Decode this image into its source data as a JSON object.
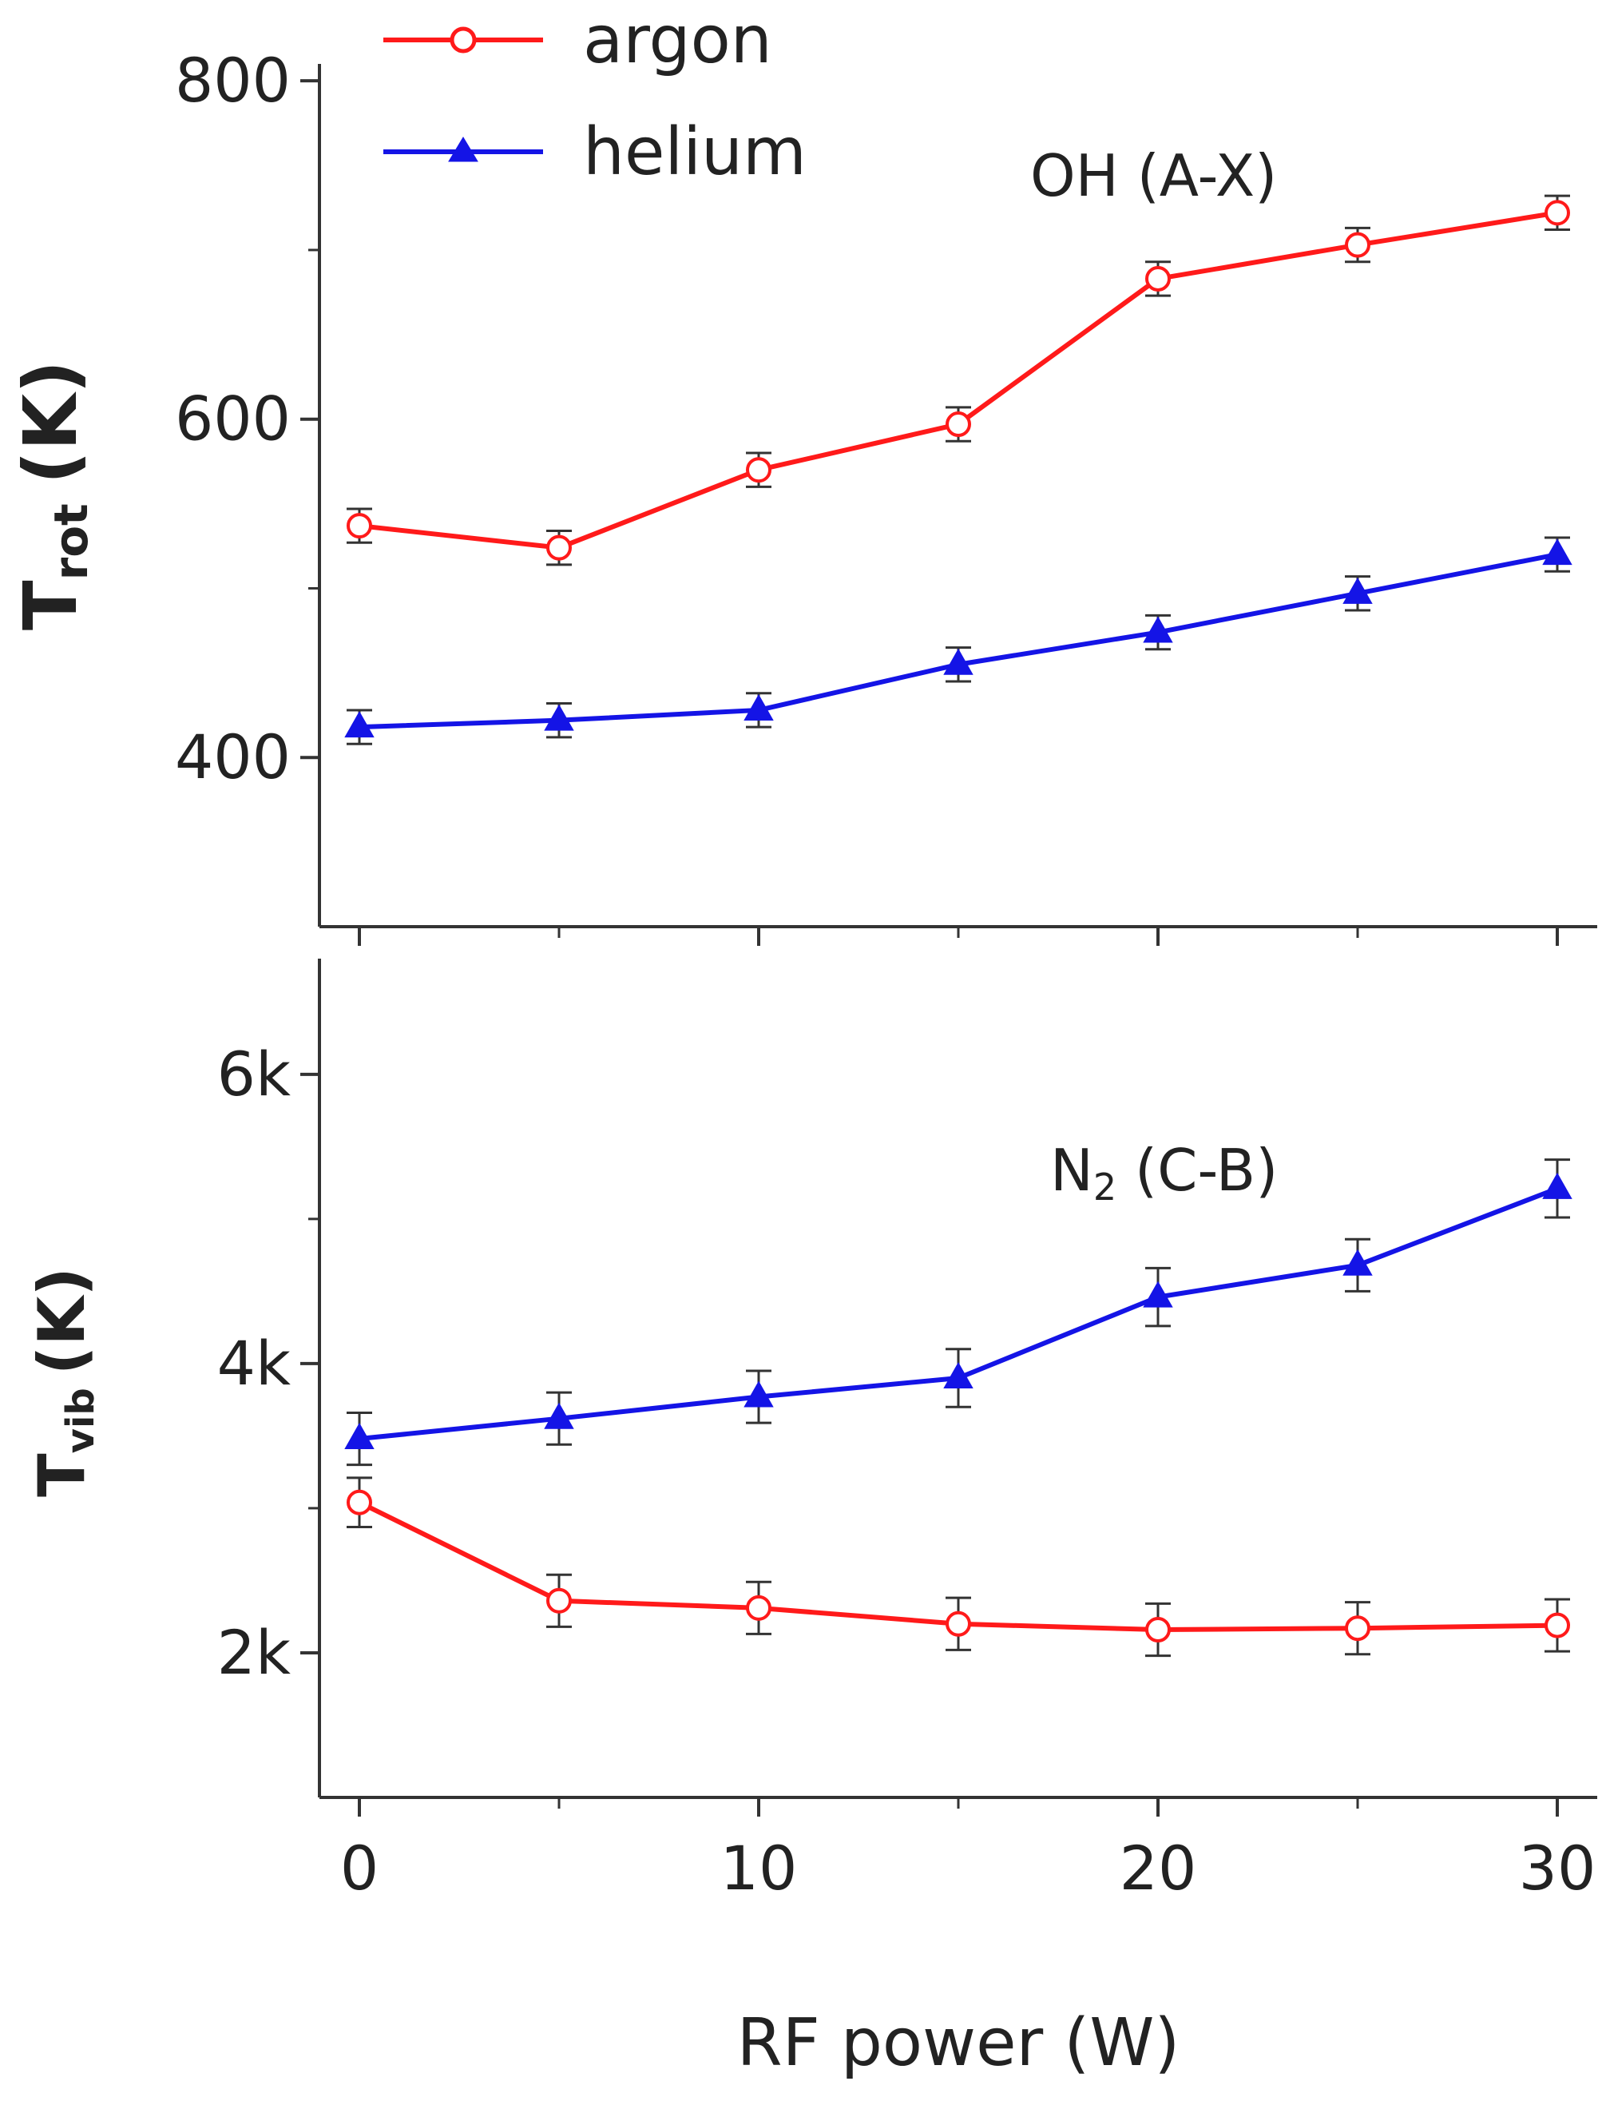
{
  "colors": {
    "argon": "#ff1a1a",
    "helium": "#1414e6",
    "axis": "#333333",
    "errorbar": "#333333"
  },
  "legend": {
    "items": [
      {
        "key": "argon",
        "label": "argon",
        "marker": "open-circle"
      },
      {
        "key": "helium",
        "label": "helium",
        "marker": "filled-triangle"
      }
    ]
  },
  "chart_data": [
    {
      "type": "line",
      "panel": "top",
      "annotation": "OH (A-X)",
      "xlabel": "RF power (W)",
      "ylabel": {
        "main": "T",
        "sub": "rot",
        "unit": "(K)"
      },
      "xlim": [
        -1,
        31
      ],
      "ylim": [
        300,
        810
      ],
      "yticks_major": [
        400,
        600,
        800
      ],
      "ytick_labels": [
        "400",
        "600",
        "800"
      ],
      "yticks_minor": [
        500,
        700
      ],
      "x": [
        0,
        5,
        10,
        15,
        20,
        25,
        30
      ],
      "series": [
        {
          "name": "argon",
          "values": [
            537,
            524,
            570,
            597,
            683,
            703,
            722
          ],
          "errors": [
            10,
            10,
            10,
            10,
            10,
            10,
            10
          ]
        },
        {
          "name": "helium",
          "values": [
            418,
            422,
            428,
            455,
            474,
            497,
            520
          ],
          "errors": [
            10,
            10,
            10,
            10,
            10,
            10,
            10
          ]
        }
      ]
    },
    {
      "type": "line",
      "panel": "bottom",
      "annotation": "N",
      "annotation_sub": "2",
      "annotation_suffix": " (C-B)",
      "xlabel": "RF power (W)",
      "ylabel": {
        "main": "T",
        "sub": "vib",
        "unit": "(K)"
      },
      "xlim": [
        -1,
        31
      ],
      "xticks": [
        0,
        10,
        20,
        30
      ],
      "xtick_labels": [
        "0",
        "10",
        "20",
        "30"
      ],
      "xticks_minor": [
        5,
        15,
        25
      ],
      "ylim": [
        1000,
        6800
      ],
      "yticks_major": [
        2000,
        4000,
        6000
      ],
      "ytick_labels": [
        "2k",
        "4k",
        "6k"
      ],
      "yticks_minor": [
        3000,
        5000
      ],
      "x": [
        0,
        5,
        10,
        15,
        20,
        25,
        30
      ],
      "series": [
        {
          "name": "helium",
          "values": [
            3480,
            3620,
            3770,
            3900,
            4460,
            4680,
            5210
          ],
          "errors": [
            180,
            180,
            180,
            200,
            200,
            180,
            200
          ]
        },
        {
          "name": "argon",
          "values": [
            3040,
            2360,
            2310,
            2200,
            2160,
            2170,
            2190
          ],
          "errors": [
            170,
            180,
            180,
            180,
            180,
            180,
            180
          ]
        }
      ]
    }
  ]
}
